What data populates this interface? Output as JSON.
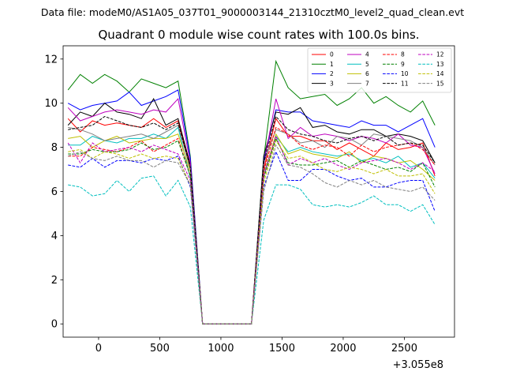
{
  "chart_data": {
    "type": "line",
    "suptitle": "Data file: modeM0/AS1A05_037T01_9000003144_21310cztM0_level2_quad_clean.evt",
    "title": "Quadrant 0 module wise count rates with 100.0s bins.",
    "xlabel": "",
    "ylabel": "",
    "x_offset_label": "+3.055e8",
    "xlim": [
      -290,
      2910
    ],
    "ylim": [
      -0.6,
      12.6
    ],
    "xticks": [
      0,
      500,
      1000,
      1500,
      2000,
      2500
    ],
    "yticks": [
      0,
      2,
      4,
      6,
      8,
      10,
      12
    ],
    "grid": false,
    "legend_position": "top-right",
    "x": [
      -250,
      -150,
      -50,
      50,
      150,
      250,
      350,
      450,
      550,
      650,
      750,
      850,
      950,
      1050,
      1150,
      1250,
      1350,
      1450,
      1550,
      1650,
      1750,
      1850,
      1950,
      2050,
      2150,
      2250,
      2350,
      2450,
      2550,
      2650,
      2750
    ],
    "series": [
      {
        "name": "0",
        "color": "#ff0000",
        "dash": "solid",
        "values": [
          9.3,
          8.7,
          9.2,
          9.0,
          9.1,
          9.0,
          8.9,
          9.3,
          8.9,
          9.2,
          7.1,
          0.0,
          0.0,
          0.0,
          0.0,
          0.0,
          7.0,
          9.3,
          8.5,
          8.5,
          8.3,
          8.3,
          7.9,
          8.2,
          7.9,
          7.6,
          8.2,
          7.9,
          8.0,
          8.2,
          6.7
        ]
      },
      {
        "name": "1",
        "color": "#008000",
        "dash": "solid",
        "values": [
          10.6,
          11.3,
          10.9,
          11.3,
          11.0,
          10.5,
          11.1,
          10.9,
          10.7,
          11.0,
          7.6,
          0.0,
          0.0,
          0.0,
          0.0,
          0.0,
          7.5,
          11.9,
          10.7,
          10.2,
          10.3,
          10.4,
          9.9,
          10.2,
          10.7,
          10.0,
          10.3,
          9.9,
          9.6,
          10.1,
          9.0
        ]
      },
      {
        "name": "2",
        "color": "#0000ff",
        "dash": "solid",
        "values": [
          10.0,
          9.7,
          9.9,
          10.0,
          10.1,
          10.5,
          9.9,
          10.1,
          10.3,
          10.6,
          7.5,
          0.0,
          0.0,
          0.0,
          0.0,
          0.0,
          7.4,
          9.7,
          9.6,
          9.6,
          9.2,
          9.1,
          9.0,
          8.9,
          9.2,
          9.0,
          9.0,
          8.7,
          9.0,
          9.3,
          8.0
        ]
      },
      {
        "name": "3",
        "color": "#000000",
        "dash": "solid",
        "values": [
          9.0,
          9.6,
          9.4,
          10.0,
          9.6,
          9.5,
          9.3,
          10.2,
          9.0,
          9.3,
          7.2,
          0.0,
          0.0,
          0.0,
          0.0,
          0.0,
          7.6,
          9.6,
          9.5,
          9.8,
          8.9,
          9.0,
          8.7,
          8.6,
          8.8,
          8.8,
          8.5,
          8.6,
          8.5,
          8.3,
          7.3
        ]
      },
      {
        "name": "4",
        "color": "#bf00bf",
        "dash": "solid",
        "values": [
          9.8,
          9.2,
          9.4,
          9.6,
          9.7,
          9.6,
          9.5,
          9.7,
          9.6,
          10.2,
          7.3,
          0.0,
          0.0,
          0.0,
          0.0,
          0.0,
          7.2,
          10.2,
          8.4,
          8.9,
          8.5,
          8.6,
          8.5,
          8.3,
          8.5,
          8.4,
          8.2,
          8.6,
          8.1,
          8.0,
          6.8
        ]
      },
      {
        "name": "5",
        "color": "#00bfbf",
        "dash": "solid",
        "values": [
          8.1,
          8.1,
          8.5,
          8.3,
          8.2,
          8.4,
          8.4,
          8.6,
          8.4,
          8.9,
          6.6,
          0.0,
          0.0,
          0.0,
          0.0,
          0.0,
          6.8,
          8.5,
          7.8,
          8.0,
          7.8,
          7.7,
          7.6,
          7.7,
          7.4,
          7.5,
          7.3,
          7.6,
          7.1,
          7.3,
          6.6
        ]
      },
      {
        "name": "6",
        "color": "#bfbf00",
        "dash": "solid",
        "values": [
          8.4,
          8.5,
          8.0,
          8.3,
          8.5,
          8.2,
          8.3,
          8.4,
          8.4,
          8.6,
          6.9,
          0.0,
          0.0,
          0.0,
          0.0,
          0.0,
          6.7,
          8.6,
          7.7,
          7.9,
          7.7,
          7.6,
          7.5,
          7.8,
          7.3,
          7.6,
          7.5,
          7.3,
          7.4,
          7.0,
          6.5
        ]
      },
      {
        "name": "7",
        "color": "#808080",
        "dash": "solid",
        "values": [
          8.9,
          8.8,
          8.6,
          8.3,
          8.4,
          8.5,
          8.6,
          8.4,
          8.7,
          9.0,
          7.0,
          0.0,
          0.0,
          0.0,
          0.0,
          0.0,
          7.3,
          8.8,
          8.6,
          8.2,
          8.3,
          8.0,
          8.5,
          8.4,
          8.1,
          8.6,
          8.5,
          8.4,
          8.3,
          8.0,
          7.2
        ]
      },
      {
        "name": "8",
        "color": "#ff0000",
        "dash": "dashed",
        "values": [
          7.6,
          7.6,
          8.0,
          7.9,
          7.8,
          8.0,
          8.3,
          7.8,
          8.1,
          8.4,
          6.7,
          0.0,
          0.0,
          0.0,
          0.0,
          0.0,
          6.9,
          8.9,
          8.6,
          8.1,
          7.9,
          8.1,
          8.0,
          7.6,
          8.1,
          7.8,
          8.0,
          8.1,
          8.2,
          7.9,
          7.2
        ]
      },
      {
        "name": "9",
        "color": "#008000",
        "dash": "dashed",
        "values": [
          7.7,
          7.7,
          7.9,
          7.8,
          7.8,
          7.9,
          8.2,
          7.9,
          8.0,
          8.3,
          6.7,
          0.0,
          0.0,
          0.0,
          0.0,
          0.0,
          6.6,
          8.4,
          7.3,
          7.2,
          7.2,
          7.3,
          7.4,
          7.1,
          7.4,
          7.2,
          7.0,
          7.1,
          6.9,
          7.3,
          6.2
        ]
      },
      {
        "name": "10",
        "color": "#0000ff",
        "dash": "dashed",
        "values": [
          7.2,
          7.1,
          7.5,
          7.1,
          7.4,
          7.4,
          7.3,
          7.5,
          7.4,
          7.6,
          6.2,
          0.0,
          0.0,
          0.0,
          0.0,
          0.0,
          6.2,
          7.8,
          6.5,
          6.5,
          7.0,
          7.0,
          6.7,
          6.5,
          6.6,
          6.2,
          6.2,
          6.4,
          6.5,
          6.5,
          5.1
        ]
      },
      {
        "name": "11",
        "color": "#000000",
        "dash": "dashed",
        "values": [
          8.8,
          8.9,
          9.0,
          9.4,
          9.2,
          9.0,
          8.9,
          9.1,
          8.8,
          9.1,
          7.1,
          0.0,
          0.0,
          0.0,
          0.0,
          0.0,
          7.3,
          9.4,
          8.8,
          8.6,
          8.5,
          8.3,
          8.2,
          8.4,
          8.5,
          8.3,
          8.5,
          8.1,
          8.2,
          8.1,
          7.3
        ]
      },
      {
        "name": "12",
        "color": "#bf00bf",
        "dash": "dashed",
        "values": [
          8.2,
          7.3,
          8.2,
          7.8,
          7.9,
          8.0,
          7.8,
          8.1,
          7.9,
          7.7,
          6.5,
          0.0,
          0.0,
          0.0,
          0.0,
          0.0,
          6.7,
          8.5,
          7.2,
          7.5,
          7.3,
          7.5,
          7.2,
          7.0,
          7.3,
          7.4,
          7.5,
          7.3,
          7.0,
          7.3,
          6.9
        ]
      },
      {
        "name": "13",
        "color": "#00bfbf",
        "dash": "dashed",
        "values": [
          6.3,
          6.2,
          5.8,
          5.9,
          6.5,
          6.0,
          6.6,
          6.7,
          5.8,
          6.5,
          5.3,
          0.0,
          0.0,
          0.0,
          0.0,
          0.0,
          4.7,
          6.3,
          6.3,
          6.1,
          5.4,
          5.3,
          5.4,
          5.3,
          5.5,
          5.8,
          5.4,
          5.4,
          5.1,
          5.4,
          4.5
        ]
      },
      {
        "name": "14",
        "color": "#bfbf00",
        "dash": "dashed",
        "values": [
          7.8,
          7.9,
          7.5,
          7.8,
          7.7,
          7.5,
          7.7,
          7.5,
          7.6,
          7.5,
          6.3,
          0.0,
          0.0,
          0.0,
          0.0,
          0.0,
          6.4,
          8.3,
          7.5,
          7.6,
          7.3,
          7.0,
          6.9,
          7.1,
          7.0,
          6.8,
          7.0,
          6.7,
          6.7,
          6.8,
          5.9
        ]
      },
      {
        "name": "15",
        "color": "#808080",
        "dash": "dashed",
        "values": [
          7.6,
          7.8,
          7.5,
          7.4,
          7.6,
          7.4,
          7.4,
          7.1,
          7.4,
          7.3,
          6.3,
          0.0,
          0.0,
          0.0,
          0.0,
          0.0,
          6.0,
          8.1,
          7.2,
          7.1,
          6.8,
          6.4,
          6.2,
          6.5,
          6.3,
          6.5,
          6.2,
          6.1,
          6.0,
          6.2,
          5.6
        ]
      }
    ]
  }
}
